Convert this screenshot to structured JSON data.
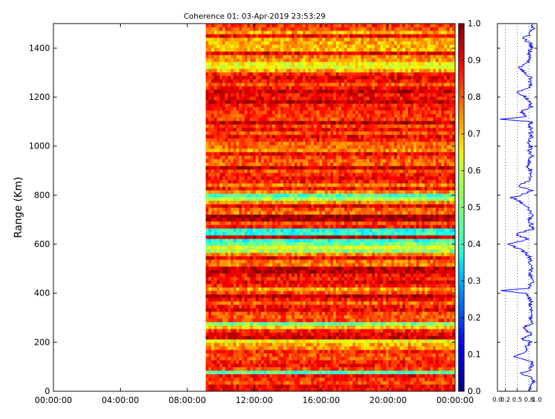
{
  "chart_data": [
    {
      "type": "heatmap",
      "title": "Coherence 01: 03-Apr-2019 23:53:29",
      "xlabel": "",
      "ylabel": "Range (Km)",
      "x_tick_labels": [
        "00:00:00",
        "04:00:00",
        "08:00:00",
        "12:00:00",
        "16:00:00",
        "20:00:00",
        "00:00:00"
      ],
      "x_tick_hours": [
        0,
        4,
        8,
        12,
        16,
        20,
        24
      ],
      "xlim_hours": [
        0,
        24
      ],
      "data_start_hour": 9.1,
      "ylim": [
        0,
        1500
      ],
      "y_ticks": [
        0,
        200,
        400,
        600,
        800,
        1000,
        1200,
        1400
      ],
      "colormap": "jet",
      "colorbar": {
        "range": [
          0,
          1
        ],
        "ticks": [
          "0.0",
          "0.1",
          "0.2",
          "0.3",
          "0.4",
          "0.5",
          "0.6",
          "0.7",
          "0.8",
          "0.9",
          "1.0"
        ]
      },
      "range_bands": [
        {
          "range": [
            0,
            40
          ],
          "mean": 0.84
        },
        {
          "range": [
            40,
            65
          ],
          "mean": 0.93
        },
        {
          "range": [
            65,
            85
          ],
          "mean": 0.5
        },
        {
          "range": [
            85,
            120
          ],
          "mean": 0.86
        },
        {
          "range": [
            120,
            140
          ],
          "mean": 0.9
        },
        {
          "range": [
            140,
            180
          ],
          "mean": 0.78
        },
        {
          "range": [
            180,
            210
          ],
          "mean": 0.7
        },
        {
          "range": [
            210,
            255
          ],
          "mean": 0.87
        },
        {
          "range": [
            255,
            280
          ],
          "mean": 0.6
        },
        {
          "range": [
            280,
            390
          ],
          "mean": 0.86
        },
        {
          "range": [
            390,
            420
          ],
          "mean": 0.72
        },
        {
          "range": [
            420,
            560
          ],
          "mean": 0.84
        },
        {
          "range": [
            560,
            620
          ],
          "mean": 0.52
        },
        {
          "range": [
            620,
            640
          ],
          "mean": 0.86
        },
        {
          "range": [
            640,
            660
          ],
          "mean": 0.47
        },
        {
          "range": [
            660,
            760
          ],
          "mean": 0.87
        },
        {
          "range": [
            760,
            780
          ],
          "mean": 0.72
        },
        {
          "range": [
            780,
            810
          ],
          "mean": 0.5
        },
        {
          "range": [
            810,
            1300
          ],
          "mean": 0.83
        },
        {
          "range": [
            1300,
            1320
          ],
          "mean": 0.7
        },
        {
          "range": [
            1320,
            1345
          ],
          "mean": 0.52
        },
        {
          "range": [
            1345,
            1500
          ],
          "mean": 0.8
        }
      ]
    },
    {
      "type": "line",
      "x_tick_labels": [
        "0.0",
        "0.2",
        "0.5",
        "0.8",
        "1.0"
      ],
      "xlim": [
        0,
        1
      ],
      "ylim": [
        0,
        1500
      ],
      "profile": [
        [
          0,
          0.85
        ],
        [
          20,
          0.8
        ],
        [
          40,
          0.9
        ],
        [
          60,
          0.88
        ],
        [
          70,
          0.55
        ],
        [
          85,
          0.82
        ],
        [
          100,
          0.86
        ],
        [
          120,
          0.9
        ],
        [
          140,
          0.4
        ],
        [
          160,
          0.75
        ],
        [
          180,
          0.7
        ],
        [
          200,
          0.85
        ],
        [
          215,
          0.6
        ],
        [
          230,
          0.88
        ],
        [
          260,
          0.65
        ],
        [
          280,
          0.9
        ],
        [
          300,
          0.85
        ],
        [
          320,
          0.87
        ],
        [
          340,
          0.82
        ],
        [
          360,
          0.86
        ],
        [
          380,
          0.8
        ],
        [
          400,
          0.7
        ],
        [
          410,
          0.05
        ],
        [
          420,
          0.78
        ],
        [
          440,
          0.86
        ],
        [
          460,
          0.85
        ],
        [
          480,
          0.82
        ],
        [
          500,
          0.86
        ],
        [
          520,
          0.83
        ],
        [
          540,
          0.85
        ],
        [
          560,
          0.75
        ],
        [
          580,
          0.55
        ],
        [
          600,
          0.3
        ],
        [
          620,
          0.8
        ],
        [
          640,
          0.45
        ],
        [
          660,
          0.87
        ],
        [
          680,
          0.85
        ],
        [
          700,
          0.82
        ],
        [
          720,
          0.86
        ],
        [
          740,
          0.8
        ],
        [
          760,
          0.7
        ],
        [
          780,
          0.5
        ],
        [
          790,
          0.35
        ],
        [
          800,
          0.6
        ],
        [
          820,
          0.85
        ],
        [
          840,
          0.5
        ],
        [
          860,
          0.86
        ],
        [
          880,
          0.8
        ],
        [
          900,
          0.85
        ],
        [
          920,
          0.75
        ],
        [
          940,
          0.83
        ],
        [
          960,
          0.86
        ],
        [
          980,
          0.82
        ],
        [
          1000,
          0.85
        ],
        [
          1020,
          0.8
        ],
        [
          1040,
          0.86
        ],
        [
          1060,
          0.84
        ],
        [
          1080,
          0.82
        ],
        [
          1100,
          0.86
        ],
        [
          1110,
          0.1
        ],
        [
          1120,
          0.78
        ],
        [
          1140,
          0.6
        ],
        [
          1160,
          0.85
        ],
        [
          1180,
          0.82
        ],
        [
          1200,
          0.7
        ],
        [
          1220,
          0.5
        ],
        [
          1240,
          0.86
        ],
        [
          1260,
          0.8
        ],
        [
          1280,
          0.83
        ],
        [
          1300,
          0.7
        ],
        [
          1320,
          0.55
        ],
        [
          1340,
          0.75
        ],
        [
          1360,
          0.85
        ],
        [
          1380,
          0.8
        ],
        [
          1400,
          0.86
        ],
        [
          1420,
          0.82
        ],
        [
          1440,
          0.65
        ],
        [
          1460,
          0.85
        ],
        [
          1480,
          0.9
        ],
        [
          1500,
          0.88
        ]
      ]
    }
  ]
}
